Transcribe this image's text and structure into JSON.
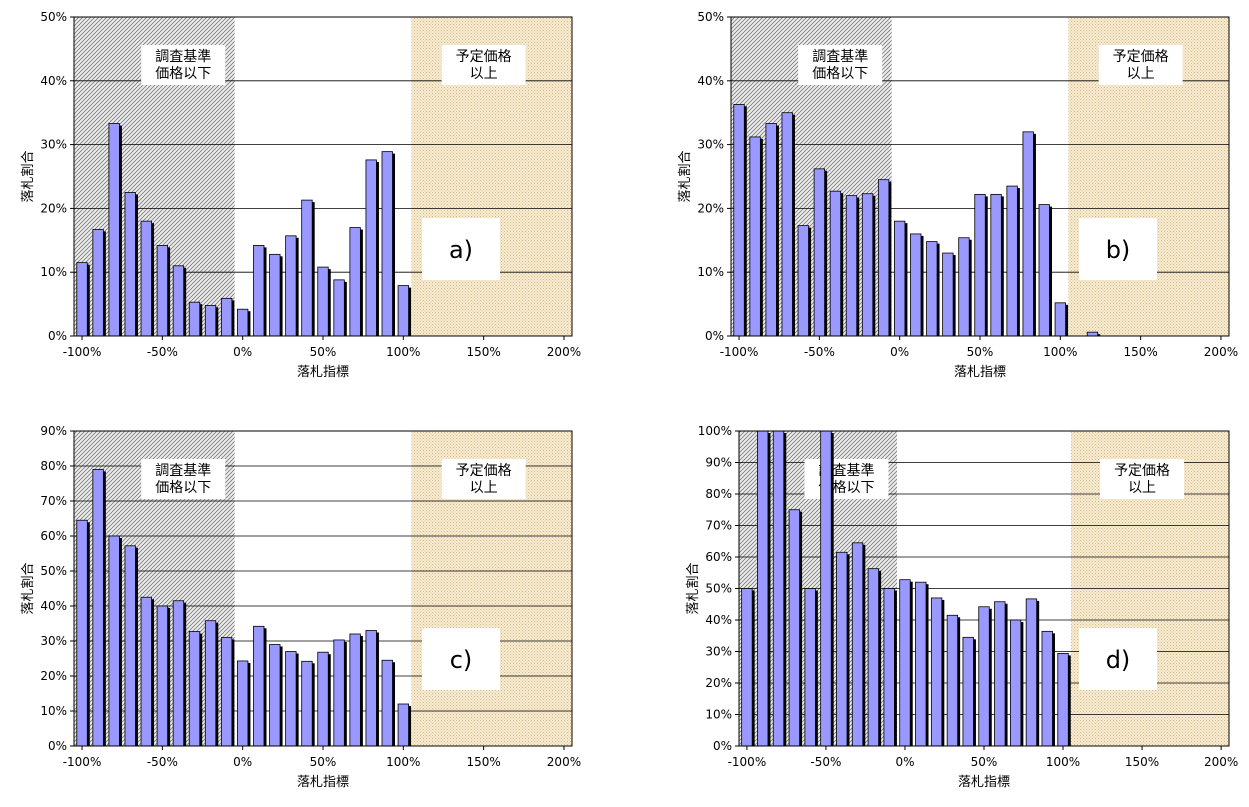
{
  "chart_data": [
    {
      "type": "bar",
      "panel_label": "a)",
      "xlabel": "落札指標",
      "ylabel": "落札割合",
      "xlim": [
        -105,
        205
      ],
      "ylim": [
        0,
        50
      ],
      "y_ticks": [
        "0%",
        "10%",
        "20%",
        "30%",
        "40%",
        "50%"
      ],
      "x_ticks": [
        "-100%",
        "-50%",
        "0%",
        "50%",
        "100%",
        "150%",
        "200%"
      ],
      "regions": [
        {
          "label": "調査基準\n価格以下",
          "from": -105,
          "to": -5,
          "pattern": "hatch"
        },
        {
          "label": "予定価格\n以上",
          "from": 105,
          "to": 205,
          "pattern": "dots"
        }
      ],
      "x": [
        -100,
        -90,
        -80,
        -70,
        -60,
        -50,
        -40,
        -30,
        -20,
        -10,
        0,
        10,
        20,
        30,
        40,
        50,
        60,
        70,
        80,
        90,
        100
      ],
      "values": [
        11.5,
        16.7,
        33.3,
        22.5,
        18.0,
        14.2,
        11.0,
        5.3,
        4.8,
        5.9,
        4.2,
        14.2,
        12.8,
        15.7,
        21.3,
        10.8,
        8.8,
        17.0,
        27.6,
        28.9,
        7.9
      ]
    },
    {
      "type": "bar",
      "panel_label": "b)",
      "xlabel": "落札指標",
      "ylabel": "落札割合",
      "xlim": [
        -105,
        205
      ],
      "ylim": [
        0,
        50
      ],
      "y_ticks": [
        "0%",
        "10%",
        "20%",
        "30%",
        "40%",
        "50%"
      ],
      "x_ticks": [
        "-100%",
        "-50%",
        "0%",
        "50%",
        "100%",
        "150%",
        "200%"
      ],
      "regions": [
        {
          "label": "調査基準\n価格以下",
          "from": -105,
          "to": -5,
          "pattern": "hatch"
        },
        {
          "label": "予定価格\n以上",
          "from": 105,
          "to": 205,
          "pattern": "dots"
        }
      ],
      "x": [
        -100,
        -90,
        -80,
        -70,
        -60,
        -50,
        -40,
        -30,
        -20,
        -10,
        0,
        10,
        20,
        30,
        40,
        50,
        60,
        70,
        80,
        90,
        100,
        120
      ],
      "values": [
        36.3,
        31.2,
        33.3,
        35.0,
        17.3,
        26.2,
        22.7,
        22.0,
        22.3,
        24.5,
        18.0,
        16.0,
        14.8,
        13.0,
        15.4,
        22.2,
        22.2,
        23.5,
        32.0,
        20.6,
        5.2,
        0.6
      ]
    },
    {
      "type": "bar",
      "panel_label": "c)",
      "xlabel": "落札指標",
      "ylabel": "落札割合",
      "xlim": [
        -105,
        205
      ],
      "ylim": [
        0,
        90
      ],
      "y_ticks": [
        "0%",
        "10%",
        "20%",
        "30%",
        "40%",
        "50%",
        "60%",
        "70%",
        "80%",
        "90%"
      ],
      "x_ticks": [
        "-100%",
        "-50%",
        "0%",
        "50%",
        "100%",
        "150%",
        "200%"
      ],
      "regions": [
        {
          "label": "調査基準\n価格以下",
          "from": -105,
          "to": -5,
          "pattern": "hatch"
        },
        {
          "label": "予定価格\n以上",
          "from": 105,
          "to": 205,
          "pattern": "dots"
        }
      ],
      "x": [
        -100,
        -90,
        -80,
        -70,
        -60,
        -50,
        -40,
        -30,
        -20,
        -10,
        0,
        10,
        20,
        30,
        40,
        50,
        60,
        70,
        80,
        90,
        100
      ],
      "values": [
        64.5,
        79.0,
        60.0,
        57.2,
        42.5,
        40.0,
        41.5,
        32.7,
        35.8,
        31.0,
        24.3,
        34.2,
        29.0,
        27.0,
        24.2,
        26.8,
        30.3,
        32.0,
        33.0,
        24.5,
        12.0
      ]
    },
    {
      "type": "bar",
      "panel_label": "d)",
      "xlabel": "落札指標",
      "ylabel": "落札割合",
      "xlim": [
        -105,
        205
      ],
      "ylim": [
        0,
        100
      ],
      "y_ticks": [
        "0%",
        "10%",
        "20%",
        "30%",
        "40%",
        "50%",
        "60%",
        "70%",
        "80%",
        "90%",
        "100%"
      ],
      "x_ticks": [
        "-100%",
        "-50%",
        "0%",
        "50%",
        "100%",
        "150%",
        "200%"
      ],
      "regions": [
        {
          "label": "調査基準\n価格以下",
          "from": -105,
          "to": -5,
          "pattern": "hatch"
        },
        {
          "label": "予定価格\n以上",
          "from": 105,
          "to": 205,
          "pattern": "dots"
        }
      ],
      "x": [
        -100,
        -90,
        -80,
        -70,
        -60,
        -50,
        -40,
        -30,
        -20,
        -10,
        0,
        10,
        20,
        30,
        40,
        50,
        60,
        70,
        80,
        90,
        100
      ],
      "values": [
        50.0,
        100.0,
        100.0,
        75.0,
        50.0,
        100.0,
        61.5,
        64.5,
        56.3,
        50.0,
        52.8,
        52.0,
        47.0,
        41.5,
        34.5,
        44.2,
        45.8,
        40.0,
        46.7,
        36.4,
        29.4
      ]
    }
  ]
}
